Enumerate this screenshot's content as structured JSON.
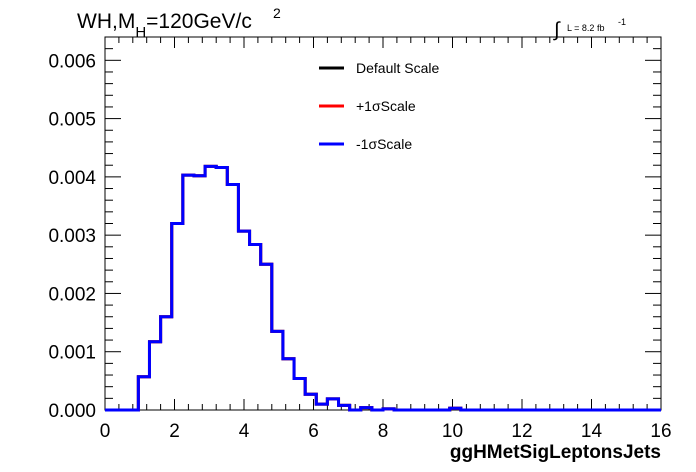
{
  "chart_data": {
    "type": "line",
    "title": {
      "prefix": "WH,M",
      "subscript": "H",
      "suffix": "=120GeV/c",
      "superscript": "2"
    },
    "luminosity": {
      "integral_symbol": "∫",
      "text": "L = 8.2 fb",
      "exponent": "-1"
    },
    "xlabel": "ggHMetSigLeptonsJets",
    "ylabel": "",
    "xlim": [
      0,
      16
    ],
    "ylim": [
      0,
      0.0064
    ],
    "x_ticks": [
      "0",
      "2",
      "4",
      "6",
      "8",
      "10",
      "12",
      "14",
      "16"
    ],
    "y_ticks": [
      "0.000",
      "0.001",
      "0.002",
      "0.003",
      "0.004",
      "0.005",
      "0.006"
    ],
    "grid": false,
    "legend_position": "top-center",
    "bin_width": 0.32,
    "series": [
      {
        "name": "Default Scale",
        "color": "#000000",
        "values": [
          0,
          0,
          0,
          0.00057,
          0.00117,
          0.0016,
          0.0032,
          0.00403,
          0.00402,
          0.00418,
          0.00416,
          0.00387,
          0.00307,
          0.00284,
          0.0025,
          0.00135,
          0.00088,
          0.00054,
          0.00027,
          0.0001,
          0.00019,
          8e-05,
          0,
          4e-05,
          0,
          2e-05,
          0,
          0,
          0,
          0,
          0,
          3e-05,
          0,
          0,
          0,
          0,
          0,
          0,
          0,
          0,
          0,
          0,
          0,
          0,
          0,
          0,
          0,
          0,
          0,
          0
        ]
      },
      {
        "name": "+1σScale",
        "color": "#ff0000",
        "values": [
          0,
          0,
          0,
          0.00057,
          0.00117,
          0.0016,
          0.0032,
          0.00403,
          0.00402,
          0.00418,
          0.00416,
          0.00387,
          0.00307,
          0.00284,
          0.0025,
          0.00135,
          0.00088,
          0.00054,
          0.00027,
          0.0001,
          0.00019,
          8e-05,
          0,
          4e-05,
          0,
          2e-05,
          0,
          0,
          0,
          0,
          0,
          3e-05,
          0,
          0,
          0,
          0,
          0,
          0,
          0,
          0,
          0,
          0,
          0,
          0,
          0,
          0,
          0,
          0,
          0,
          0
        ]
      },
      {
        "name": "-1σScale",
        "color": "#0000ff",
        "values": [
          0,
          0,
          0,
          0.00057,
          0.00117,
          0.0016,
          0.0032,
          0.00403,
          0.00402,
          0.00418,
          0.00416,
          0.00387,
          0.00307,
          0.00284,
          0.0025,
          0.00135,
          0.00088,
          0.00054,
          0.00027,
          0.0001,
          0.00019,
          8e-05,
          0,
          4e-05,
          0,
          2e-05,
          0,
          0,
          0,
          0,
          0,
          3e-05,
          0,
          0,
          0,
          0,
          0,
          0,
          0,
          0,
          0,
          0,
          0,
          0,
          0,
          0,
          0,
          0,
          0,
          0
        ]
      }
    ]
  }
}
